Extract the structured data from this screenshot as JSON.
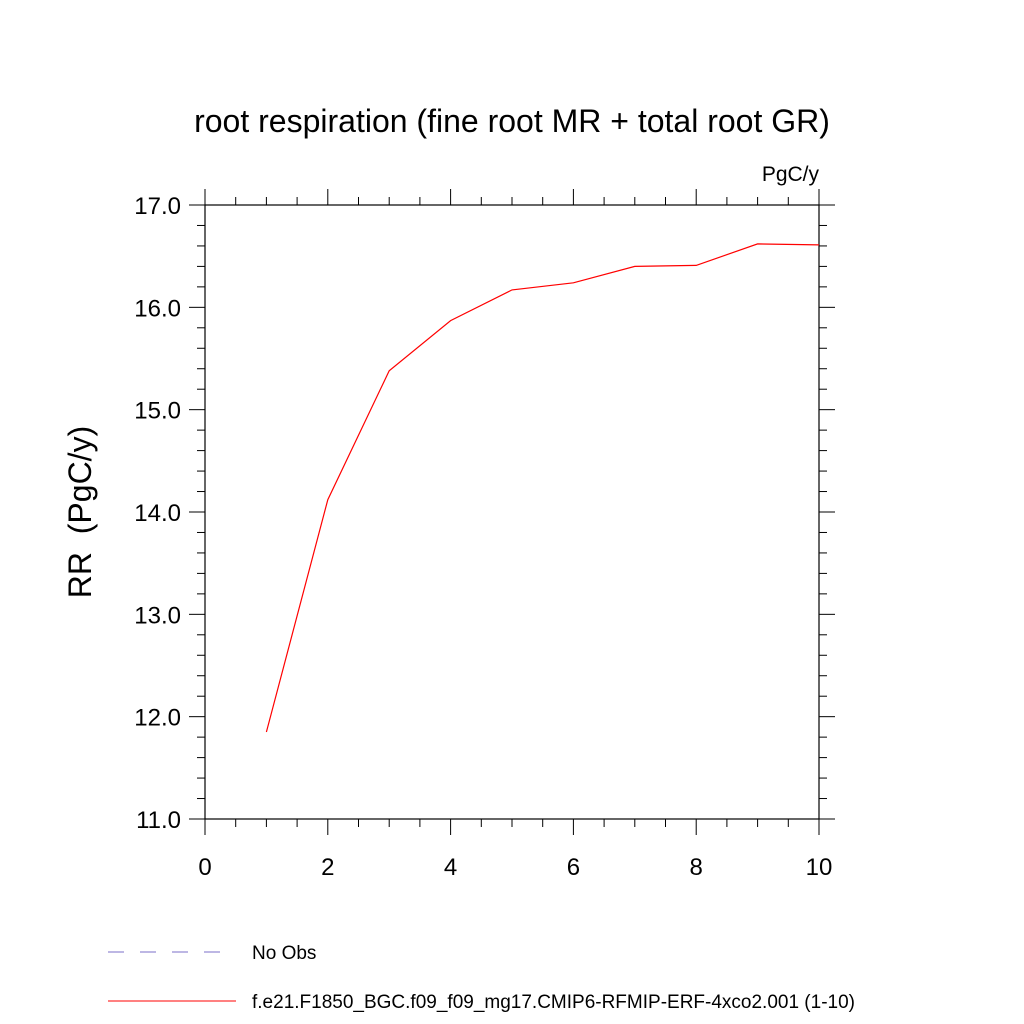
{
  "chart_data": {
    "type": "line",
    "title": "root respiration (fine root MR + total root GR)",
    "units_label": "PgC/y",
    "ylabel": "RR  (PgC/y)",
    "xlabel": "",
    "xlim": [
      0,
      10
    ],
    "ylim": [
      11.0,
      17.0
    ],
    "x_ticks": [
      "0",
      "2",
      "4",
      "6",
      "8",
      "10"
    ],
    "x_tick_values": [
      0,
      2,
      4,
      6,
      8,
      10
    ],
    "y_ticks": [
      "11.0",
      "12.0",
      "13.0",
      "14.0",
      "15.0",
      "16.0",
      "17.0"
    ],
    "y_tick_values": [
      11,
      12,
      13,
      14,
      15,
      16,
      17
    ],
    "grid": false,
    "legend_position": "bottom",
    "series": [
      {
        "name": "f.e21.F1850_BGC.f09_f09_mg17.CMIP6-RFMIP-ERF-4xco2.001 (1-10)",
        "color": "#ff0000",
        "style": "solid",
        "x": [
          1,
          2,
          3,
          4,
          5,
          6,
          7,
          8,
          9,
          10
        ],
        "y": [
          11.85,
          14.12,
          15.38,
          15.87,
          16.17,
          16.24,
          16.4,
          16.41,
          16.62,
          16.61
        ]
      }
    ],
    "legend": [
      {
        "label": "No Obs",
        "color": "#7b6fc8",
        "style": "dashed"
      },
      {
        "label": "f.e21.F1850_BGC.f09_f09_mg17.CMIP6-RFMIP-ERF-4xco2.001 (1-10)",
        "color": "#ff0000",
        "style": "solid"
      }
    ]
  }
}
